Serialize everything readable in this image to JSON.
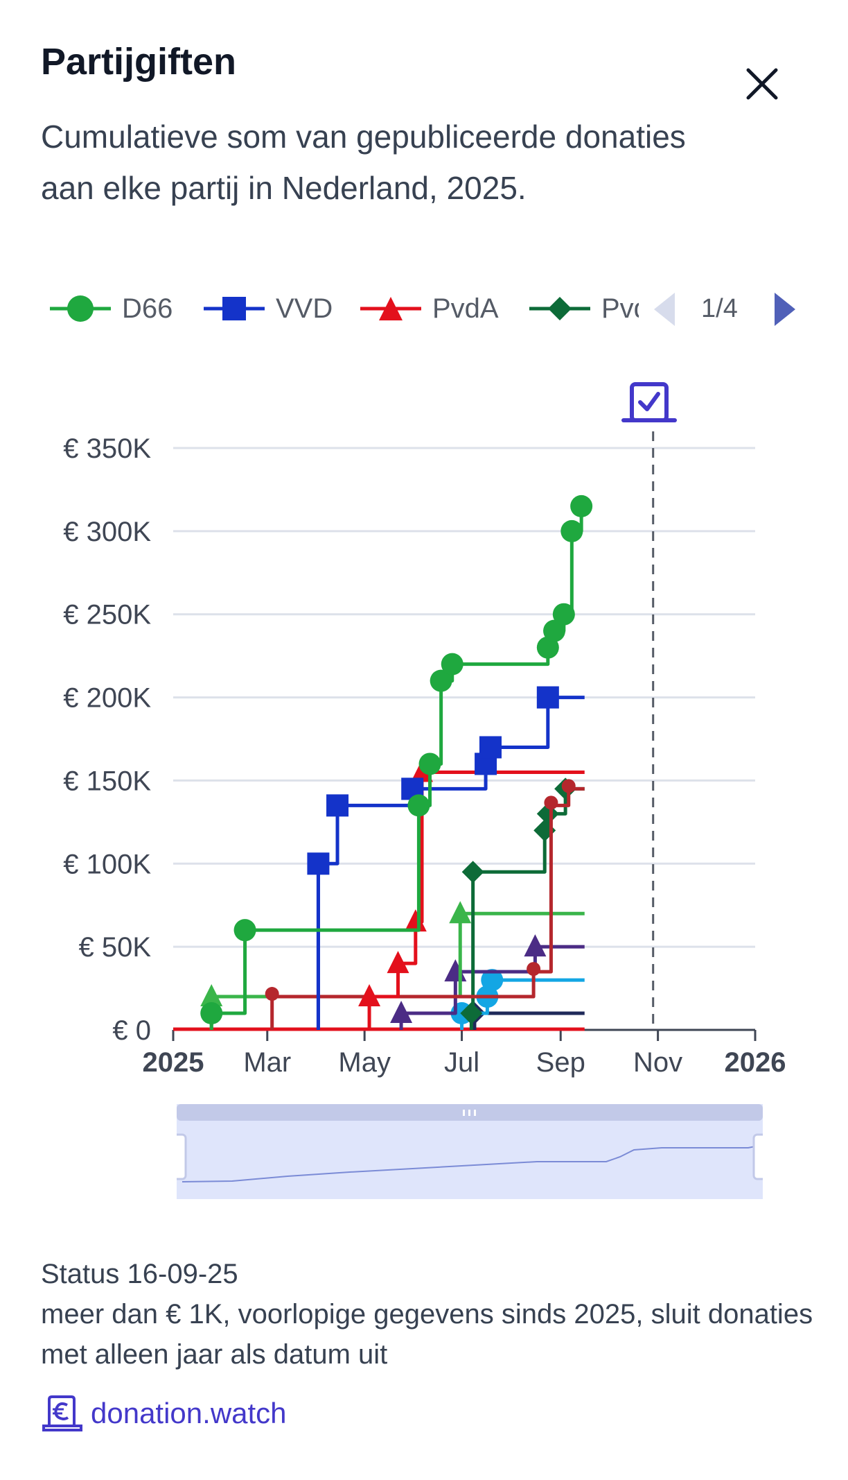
{
  "header": {
    "title": "Partijgiften",
    "subtitle": "Cumulatieve som van gepubliceerde donaties aan elke partij in Nederland, 2025."
  },
  "legend": {
    "items": [
      {
        "label": "D66",
        "color": "#1fa83f",
        "marker": "circle"
      },
      {
        "label": "VVD",
        "color": "#1433c9",
        "marker": "square"
      },
      {
        "label": "PvdA",
        "color": "#e3101c",
        "marker": "triangle"
      },
      {
        "label": "PvdD",
        "color": "#0d6b38",
        "marker": "diamond"
      }
    ],
    "page": "1/4"
  },
  "chart_data": {
    "type": "line",
    "step": true,
    "x_axis": {
      "type": "datetime",
      "range": [
        "2025-01-01",
        "2026-01-01"
      ],
      "tick_labels": [
        "2025",
        "Mar",
        "May",
        "Jul",
        "Sep",
        "Nov",
        "2026"
      ]
    },
    "y_axis": {
      "range": [
        0,
        350000
      ],
      "tick_labels": [
        "€ 0",
        "€ 50K",
        "€ 100K",
        "€ 150K",
        "€ 200K",
        "€ 250K",
        "€ 300K",
        "€ 350K"
      ]
    },
    "grid": true,
    "legend_placement": "top",
    "election_date": "2025-10-29",
    "election_icon": "ballot-box-icon",
    "end_date": "2025-09-16",
    "series": [
      {
        "name": "D66",
        "color": "#1fa83f",
        "marker": "circle",
        "points": [
          [
            "2025-01-25",
            10000
          ],
          [
            "2025-02-15",
            60000
          ],
          [
            "2025-06-04",
            135000
          ],
          [
            "2025-06-11",
            160000
          ],
          [
            "2025-06-18",
            210000
          ],
          [
            "2025-06-25",
            220000
          ],
          [
            "2025-08-24",
            230000
          ],
          [
            "2025-08-28",
            240000
          ],
          [
            "2025-09-03",
            250000
          ],
          [
            "2025-09-08",
            300000
          ],
          [
            "2025-09-14",
            315000
          ]
        ]
      },
      {
        "name": "VVD",
        "color": "#1433c9",
        "marker": "square",
        "points": [
          [
            "2025-04-02",
            100000
          ],
          [
            "2025-04-14",
            135000
          ],
          [
            "2025-05-31",
            145000
          ],
          [
            "2025-07-16",
            160000
          ],
          [
            "2025-07-19",
            170000
          ],
          [
            "2025-08-24",
            200000
          ]
        ]
      },
      {
        "markers": "none",
        "color": "#1433c9",
        "points": [
          [
            "2025-04-02",
            0
          ],
          [
            "2025-04-02",
            100000
          ]
        ]
      },
      {
        "name": "PvdA",
        "color": "#e3101c",
        "marker": "triangle",
        "points": [
          [
            "2025-05-04",
            20000
          ],
          [
            "2025-05-22",
            40000
          ],
          [
            "2025-06-02",
            65000
          ],
          [
            "2025-06-06",
            155000
          ]
        ]
      },
      {
        "color": "#b5272d",
        "marker": "pin",
        "points": [
          [
            "2025-03-04",
            20000
          ],
          [
            "2025-08-15",
            35000
          ],
          [
            "2025-08-26",
            135000
          ],
          [
            "2025-09-06",
            145000
          ]
        ]
      },
      {
        "name": "PvdD",
        "color": "#0d6b38",
        "marker": "diamond",
        "points": [
          [
            "2025-07-07",
            10000
          ],
          [
            "2025-07-08",
            95000
          ],
          [
            "2025-08-22",
            120000
          ],
          [
            "2025-08-24",
            130000
          ],
          [
            "2025-09-04",
            145000
          ]
        ]
      },
      {
        "color": "#3ab54a",
        "marker": "triangle",
        "points": [
          [
            "2025-01-25",
            20000
          ],
          [
            "2025-06-30",
            70000
          ]
        ]
      },
      {
        "color": "#4b2c85",
        "marker": "triangle",
        "points": [
          [
            "2025-05-24",
            10000
          ],
          [
            "2025-06-27",
            35000
          ],
          [
            "2025-08-16",
            50000
          ]
        ]
      },
      {
        "color": "#13a6e4",
        "marker": "circle",
        "points": [
          [
            "2025-07-01",
            10000
          ],
          [
            "2025-07-17",
            20000
          ],
          [
            "2025-07-20",
            30000
          ]
        ]
      },
      {
        "color": "#1f2a5a",
        "marker": "diamond",
        "points": [
          [
            "2025-07-09",
            10000
          ]
        ]
      }
    ]
  },
  "navigator": {
    "handle_icon": "grip-icon"
  },
  "footer": {
    "status": "Status 16-09-25",
    "note": "meer dan € 1K, voorlopige gegevens sinds 2025, sluit donaties met alleen jaar als datum uit",
    "source_icon": "euro-document-icon",
    "source": "donation.watch"
  }
}
